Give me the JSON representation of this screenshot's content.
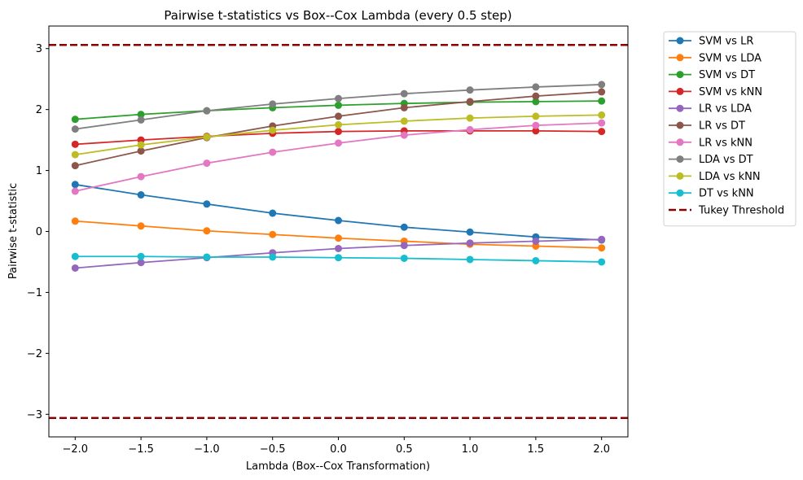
{
  "chart_data": {
    "type": "line",
    "title": "Pairwise t-statistics vs Box--Cox Lambda (every 0.5 step)",
    "xlabel": "Lambda (Box--Cox Transformation)",
    "ylabel": "Pairwise t-statistic",
    "xlim": [
      -2.2,
      2.2
    ],
    "ylim": [
      -3.37,
      3.37
    ],
    "x": [
      -2.0,
      -1.5,
      -1.0,
      -0.5,
      0.0,
      0.5,
      1.0,
      1.5,
      2.0
    ],
    "xticks": [
      -2.0,
      -1.5,
      -1.0,
      -0.5,
      0.0,
      0.5,
      1.0,
      1.5,
      2.0
    ],
    "xtick_labels": [
      "−2.0",
      "−1.5",
      "−1.0",
      "−0.5",
      "0.0",
      "0.5",
      "1.0",
      "1.5",
      "2.0"
    ],
    "yticks": [
      -3,
      -2,
      -1,
      0,
      1,
      2,
      3
    ],
    "ytick_labels": [
      "−3",
      "−2",
      "−1",
      "0",
      "1",
      "2",
      "3"
    ],
    "grid": false,
    "legend_position": "outside-right",
    "series": [
      {
        "name": "SVM vs LR",
        "color": "#1f77b4",
        "values": [
          0.77,
          0.6,
          0.45,
          0.3,
          0.18,
          0.07,
          -0.01,
          -0.09,
          -0.14
        ]
      },
      {
        "name": "SVM vs LDA",
        "color": "#ff7f0e",
        "values": [
          0.17,
          0.09,
          0.01,
          -0.05,
          -0.11,
          -0.16,
          -0.21,
          -0.24,
          -0.27
        ]
      },
      {
        "name": "SVM vs DT",
        "color": "#2ca02c",
        "values": [
          1.84,
          1.92,
          1.98,
          2.03,
          2.07,
          2.1,
          2.12,
          2.13,
          2.14
        ]
      },
      {
        "name": "SVM vs kNN",
        "color": "#d62728",
        "values": [
          1.43,
          1.5,
          1.56,
          1.61,
          1.64,
          1.65,
          1.65,
          1.65,
          1.64
        ]
      },
      {
        "name": "LR vs LDA",
        "color": "#9467bd",
        "values": [
          -0.6,
          -0.51,
          -0.43,
          -0.35,
          -0.28,
          -0.23,
          -0.19,
          -0.16,
          -0.13
        ]
      },
      {
        "name": "LR vs DT",
        "color": "#8c564b",
        "values": [
          1.08,
          1.32,
          1.54,
          1.73,
          1.89,
          2.03,
          2.13,
          2.22,
          2.29
        ]
      },
      {
        "name": "LR vs kNN",
        "color": "#e377c2",
        "values": [
          0.66,
          0.9,
          1.12,
          1.3,
          1.45,
          1.58,
          1.67,
          1.74,
          1.78
        ]
      },
      {
        "name": "LDA vs DT",
        "color": "#7f7f7f",
        "values": [
          1.68,
          1.83,
          1.98,
          2.09,
          2.18,
          2.26,
          2.32,
          2.37,
          2.41
        ]
      },
      {
        "name": "LDA vs kNN",
        "color": "#bcbd22",
        "values": [
          1.26,
          1.42,
          1.55,
          1.66,
          1.75,
          1.81,
          1.86,
          1.89,
          1.91
        ]
      },
      {
        "name": "DT vs kNN",
        "color": "#17becf",
        "values": [
          -0.41,
          -0.41,
          -0.42,
          -0.42,
          -0.43,
          -0.44,
          -0.46,
          -0.48,
          -0.5
        ]
      }
    ],
    "threshold": {
      "name": "Tukey Threshold",
      "color": "#8b0000",
      "values": [
        3.06,
        -3.06
      ]
    }
  }
}
